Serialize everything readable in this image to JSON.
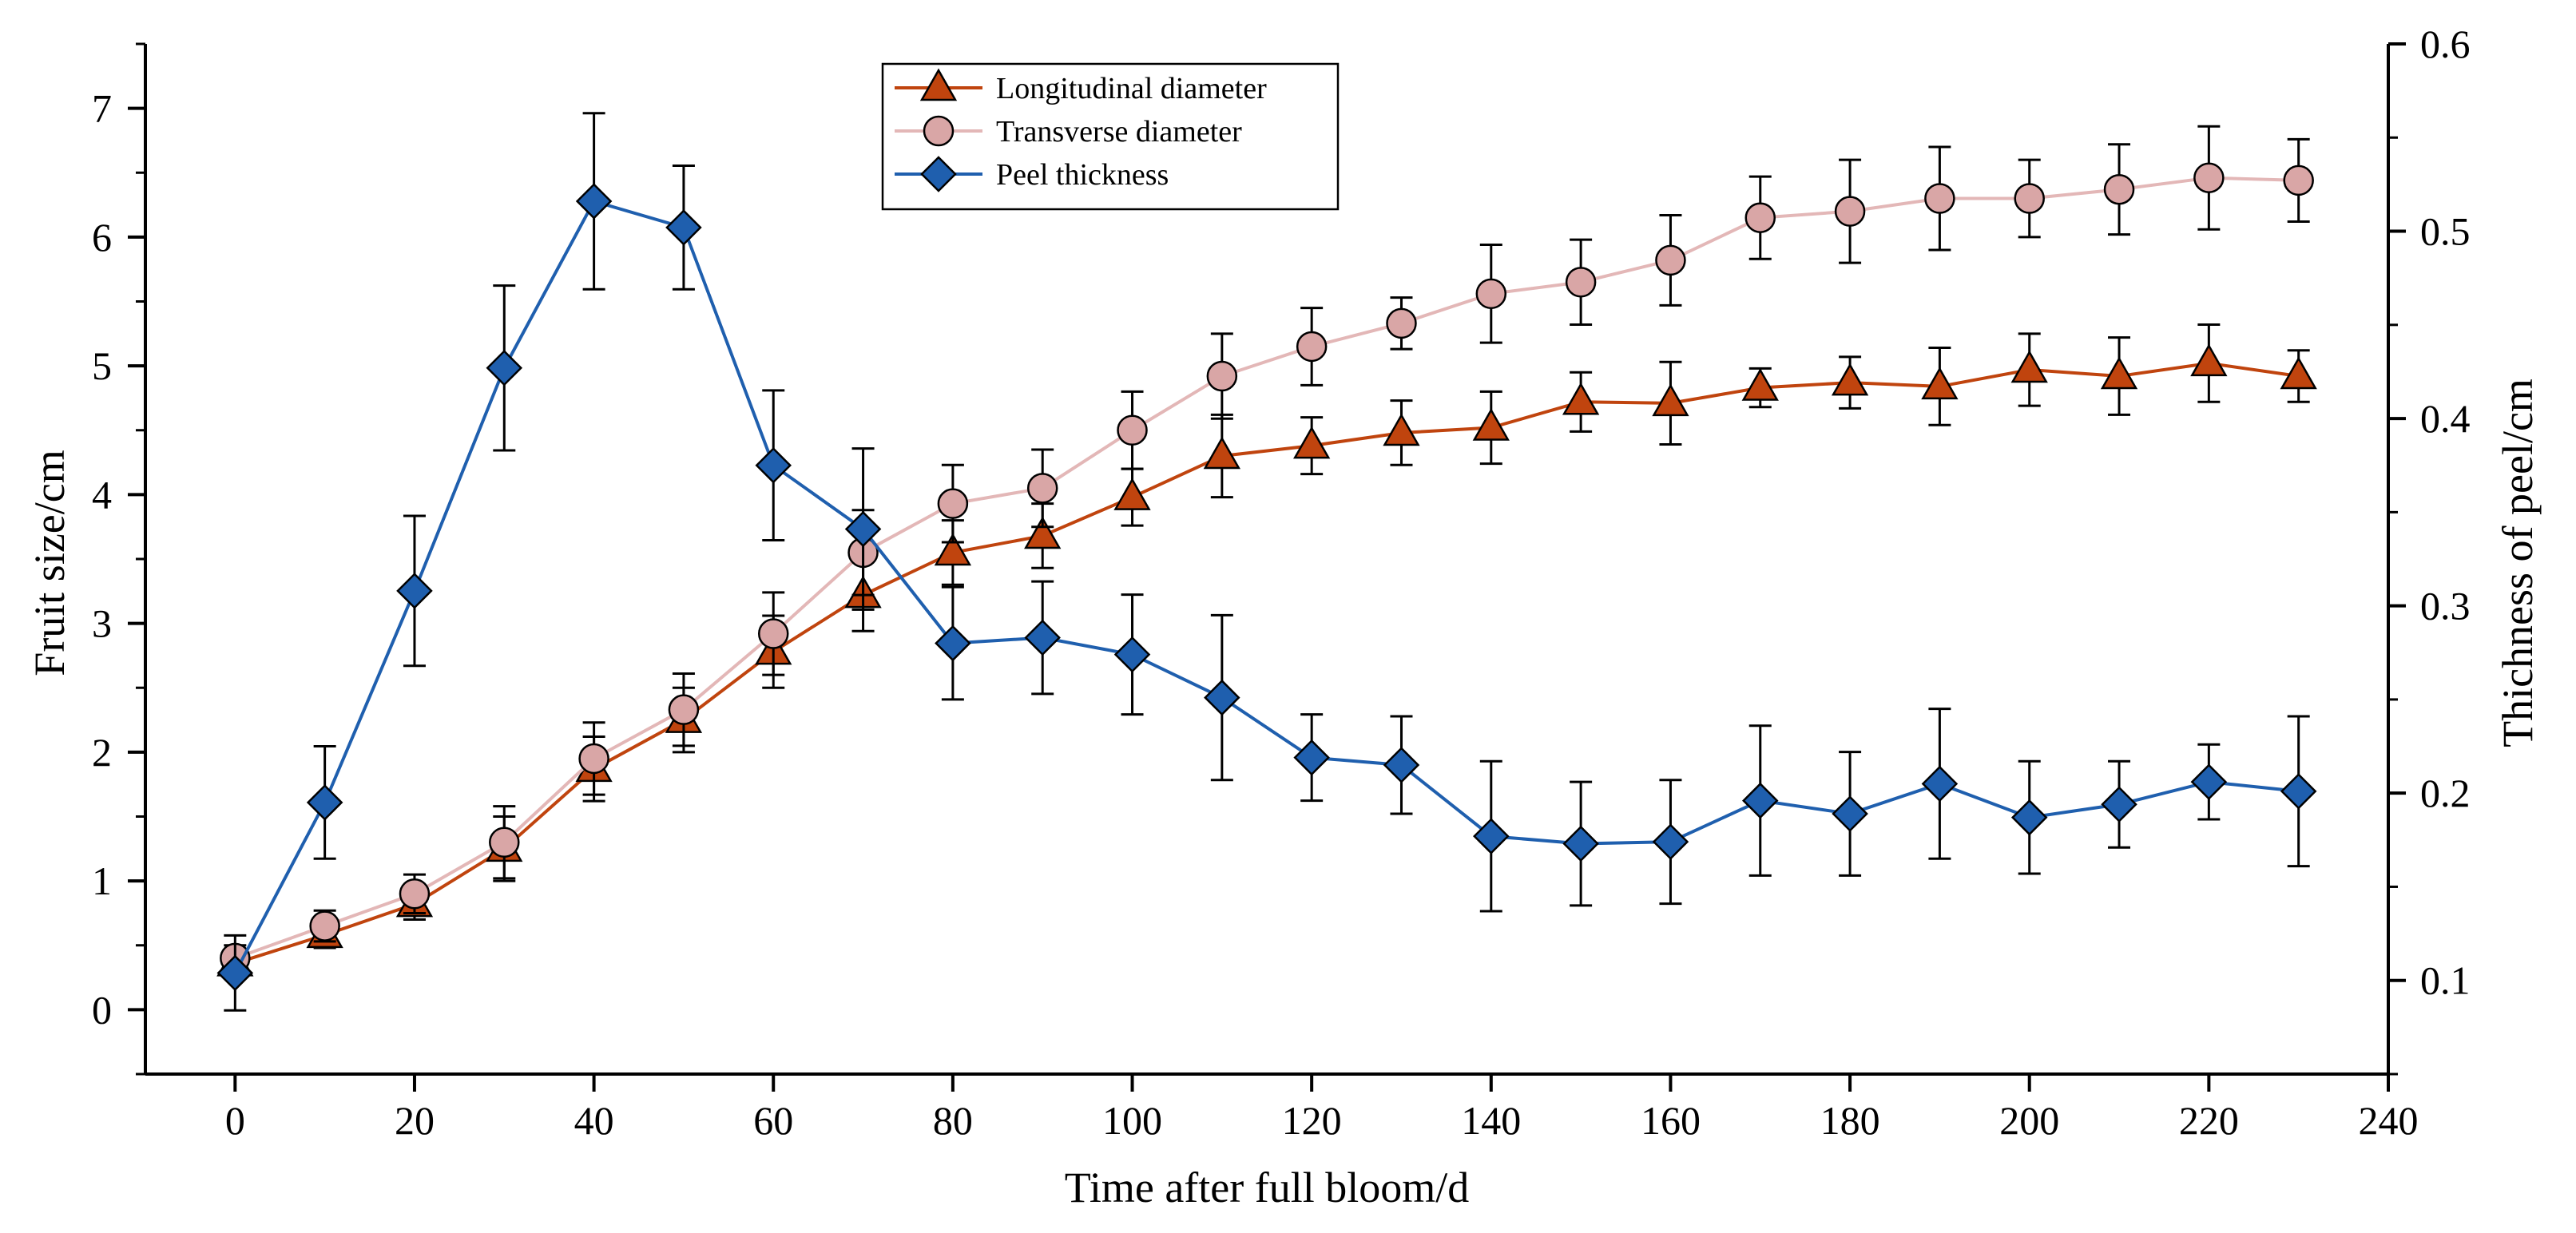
{
  "chart_data": {
    "type": "line",
    "xlabel": "Time after full bloom/d",
    "ylabel_left": "Fruit size/cm",
    "ylabel_right": "Thichness of peel/cm",
    "xlim": [
      -10,
      240
    ],
    "ylim_left": [
      -0.5,
      7.5
    ],
    "ylim_right": [
      0.05,
      0.6
    ],
    "x_ticks": [
      0,
      20,
      40,
      60,
      80,
      100,
      120,
      140,
      160,
      180,
      200,
      220,
      240
    ],
    "y_left_ticks": [
      0,
      1,
      2,
      3,
      4,
      5,
      6,
      7
    ],
    "y_right_ticks": [
      "0.1",
      "0.2",
      "0.3",
      "0.4",
      "0.5",
      "0.6"
    ],
    "x": [
      0,
      10,
      20,
      30,
      40,
      50,
      60,
      70,
      80,
      90,
      100,
      110,
      120,
      130,
      140,
      150,
      160,
      170,
      180,
      190,
      200,
      210,
      220,
      230
    ],
    "series": [
      {
        "name": "Longitudinal diameter",
        "axis": "left",
        "marker": "triangle",
        "color": "#c0440e",
        "line_color": "#c0440e",
        "values": [
          0.36,
          0.58,
          0.82,
          1.25,
          1.87,
          2.25,
          2.78,
          3.22,
          3.55,
          3.68,
          3.98,
          4.3,
          4.38,
          4.48,
          4.52,
          4.72,
          4.71,
          4.83,
          4.87,
          4.84,
          4.97,
          4.92,
          5.02,
          4.92
        ],
        "errors": [
          0.1,
          0.1,
          0.12,
          0.25,
          0.25,
          0.25,
          0.28,
          0.28,
          0.25,
          0.25,
          0.22,
          0.32,
          0.22,
          0.25,
          0.28,
          0.23,
          0.32,
          0.15,
          0.2,
          0.3,
          0.28,
          0.3,
          0.3,
          0.2
        ]
      },
      {
        "name": "Transverse diameter",
        "axis": "left",
        "marker": "circle",
        "color": "#d9a6a6",
        "line_color": "#e3b7b7",
        "values": [
          0.4,
          0.65,
          0.9,
          1.3,
          1.95,
          2.33,
          2.92,
          3.55,
          3.93,
          4.05,
          4.5,
          4.92,
          5.15,
          5.33,
          5.56,
          5.65,
          5.82,
          6.15,
          6.2,
          6.3,
          6.3,
          6.37,
          6.46,
          6.44
        ],
        "errors": [
          0.1,
          0.12,
          0.15,
          0.28,
          0.28,
          0.28,
          0.32,
          0.33,
          0.3,
          0.3,
          0.3,
          0.33,
          0.3,
          0.2,
          0.38,
          0.33,
          0.35,
          0.32,
          0.4,
          0.4,
          0.3,
          0.35,
          0.4,
          0.32
        ]
      },
      {
        "name": "Peel thickness",
        "axis": "right",
        "marker": "diamond",
        "color": "#1f5fae",
        "line_color": "#1f5fae",
        "values": [
          0.104,
          0.195,
          0.308,
          0.427,
          0.516,
          0.502,
          0.375,
          0.341,
          0.28,
          0.283,
          0.274,
          0.251,
          0.219,
          0.215,
          0.177,
          0.173,
          0.174,
          0.196,
          0.189,
          0.205,
          0.187,
          0.194,
          0.206,
          0.201
        ],
        "errors": [
          0.02,
          0.03,
          0.04,
          0.044,
          0.047,
          0.033,
          0.04,
          0.043,
          0.03,
          0.03,
          0.032,
          0.044,
          0.023,
          0.026,
          0.04,
          0.033,
          0.033,
          0.04,
          0.033,
          0.04,
          0.03,
          0.023,
          0.02,
          0.04
        ]
      }
    ],
    "legend_position": "top-center",
    "grid": false
  }
}
